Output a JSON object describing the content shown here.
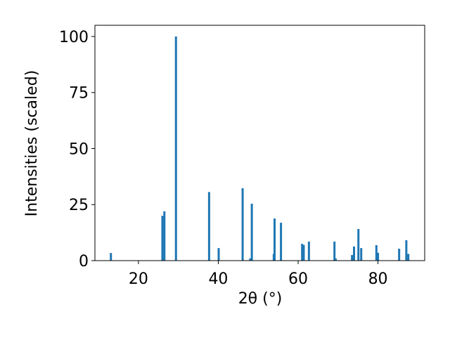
{
  "chart_data": {
    "type": "bar",
    "x_label": "2θ (°)",
    "y_label": "Intensities (scaled)",
    "x": [
      13.1,
      26.0,
      26.5,
      29.4,
      37.7,
      40.1,
      46.1,
      48.0,
      48.4,
      53.9,
      54.1,
      55.7,
      61.0,
      61.4,
      62.7,
      69.1,
      69.4,
      73.5,
      74.0,
      75.1,
      75.8,
      79.6,
      80.0,
      85.3,
      87.1,
      87.6
    ],
    "values": [
      3.4,
      20,
      22,
      100,
      30.6,
      5.6,
      32.3,
      1,
      25.4,
      3,
      18.8,
      16.9,
      7.5,
      7,
      8.5,
      8.5,
      1,
      2.5,
      6.3,
      14.1,
      5.6,
      6.9,
      3.5,
      5.3,
      9.1,
      3
    ],
    "color": "#1f77b4",
    "xlim": [
      9.1,
      91.7
    ],
    "xticks": [
      20,
      40,
      60,
      80
    ],
    "ylim": [
      0,
      105
    ],
    "yticks": [
      0,
      25,
      50,
      75,
      100
    ]
  }
}
